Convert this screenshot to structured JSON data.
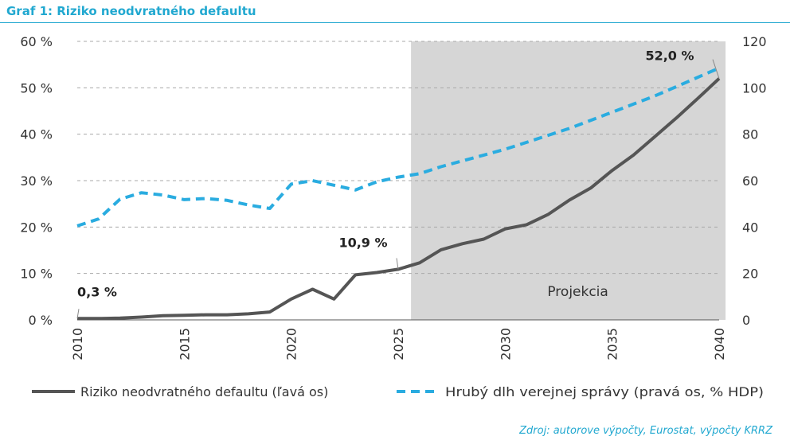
{
  "title": "Graf 1: Riziko neodvratného defaultu",
  "source": "Zdroj: autorove výpočty, Eurostat, výpočty KRRZ",
  "colors": {
    "accent": "#21a8d0",
    "risk_line": "#555555",
    "debt_line": "#2aace0",
    "projection_bg": "#d6d6d6"
  },
  "chart_data": {
    "type": "line",
    "x": [
      2010,
      2011,
      2012,
      2013,
      2014,
      2015,
      2016,
      2017,
      2018,
      2019,
      2020,
      2021,
      2022,
      2023,
      2024,
      2025,
      2026,
      2027,
      2028,
      2029,
      2030,
      2031,
      2032,
      2033,
      2034,
      2035,
      2036,
      2037,
      2038,
      2039,
      2040
    ],
    "x_ticks": [
      "2010",
      "2015",
      "2020",
      "2025",
      "2030",
      "2035",
      "2040"
    ],
    "xlim": [
      2010,
      2040
    ],
    "y_left_ticks": [
      "0 %",
      "10 %",
      "20 %",
      "30 %",
      "40 %",
      "50 %",
      "60 %"
    ],
    "ylim_left": [
      0,
      60
    ],
    "y_right_ticks": [
      "0",
      "20",
      "40",
      "60",
      "80",
      "100",
      "120"
    ],
    "ylim_right": [
      0,
      120
    ],
    "grid": "horizontal dashed",
    "projection": {
      "label": "Projekcia",
      "x_start": 2025.6,
      "x_end": 2040.3
    },
    "series": [
      {
        "name": "Riziko neodvratného defaultu (ľavá os)",
        "axis": "left",
        "style": "solid",
        "values": [
          0.3,
          0.3,
          0.4,
          0.6,
          0.9,
          1.0,
          1.1,
          1.1,
          1.3,
          1.7,
          4.5,
          6.6,
          4.5,
          9.7,
          10.2,
          10.9,
          12.3,
          15.1,
          16.4,
          17.4,
          19.6,
          20.5,
          22.7,
          25.8,
          28.4,
          32.2,
          35.5,
          39.5,
          43.5,
          47.7,
          52.0
        ]
      },
      {
        "name": "Hrubý dlh verejnej správy (pravá os, % HDP)",
        "axis": "right",
        "style": "dashed",
        "values": [
          40.5,
          43.5,
          52.0,
          54.8,
          53.8,
          51.8,
          52.3,
          51.5,
          49.5,
          48.0,
          58.5,
          60.0,
          58.0,
          56.0,
          59.5,
          61.5,
          63.0,
          66.0,
          68.5,
          71.0,
          73.5,
          76.5,
          79.5,
          82.5,
          86.0,
          89.5,
          93.0,
          96.5,
          100.5,
          104.5,
          108.5
        ]
      }
    ],
    "annotations": [
      {
        "text": "0,3 %",
        "series": 0,
        "x": 2010
      },
      {
        "text": "10,9 %",
        "series": 0,
        "x": 2025
      },
      {
        "text": "52,0 %",
        "series": 0,
        "x": 2040
      }
    ]
  }
}
